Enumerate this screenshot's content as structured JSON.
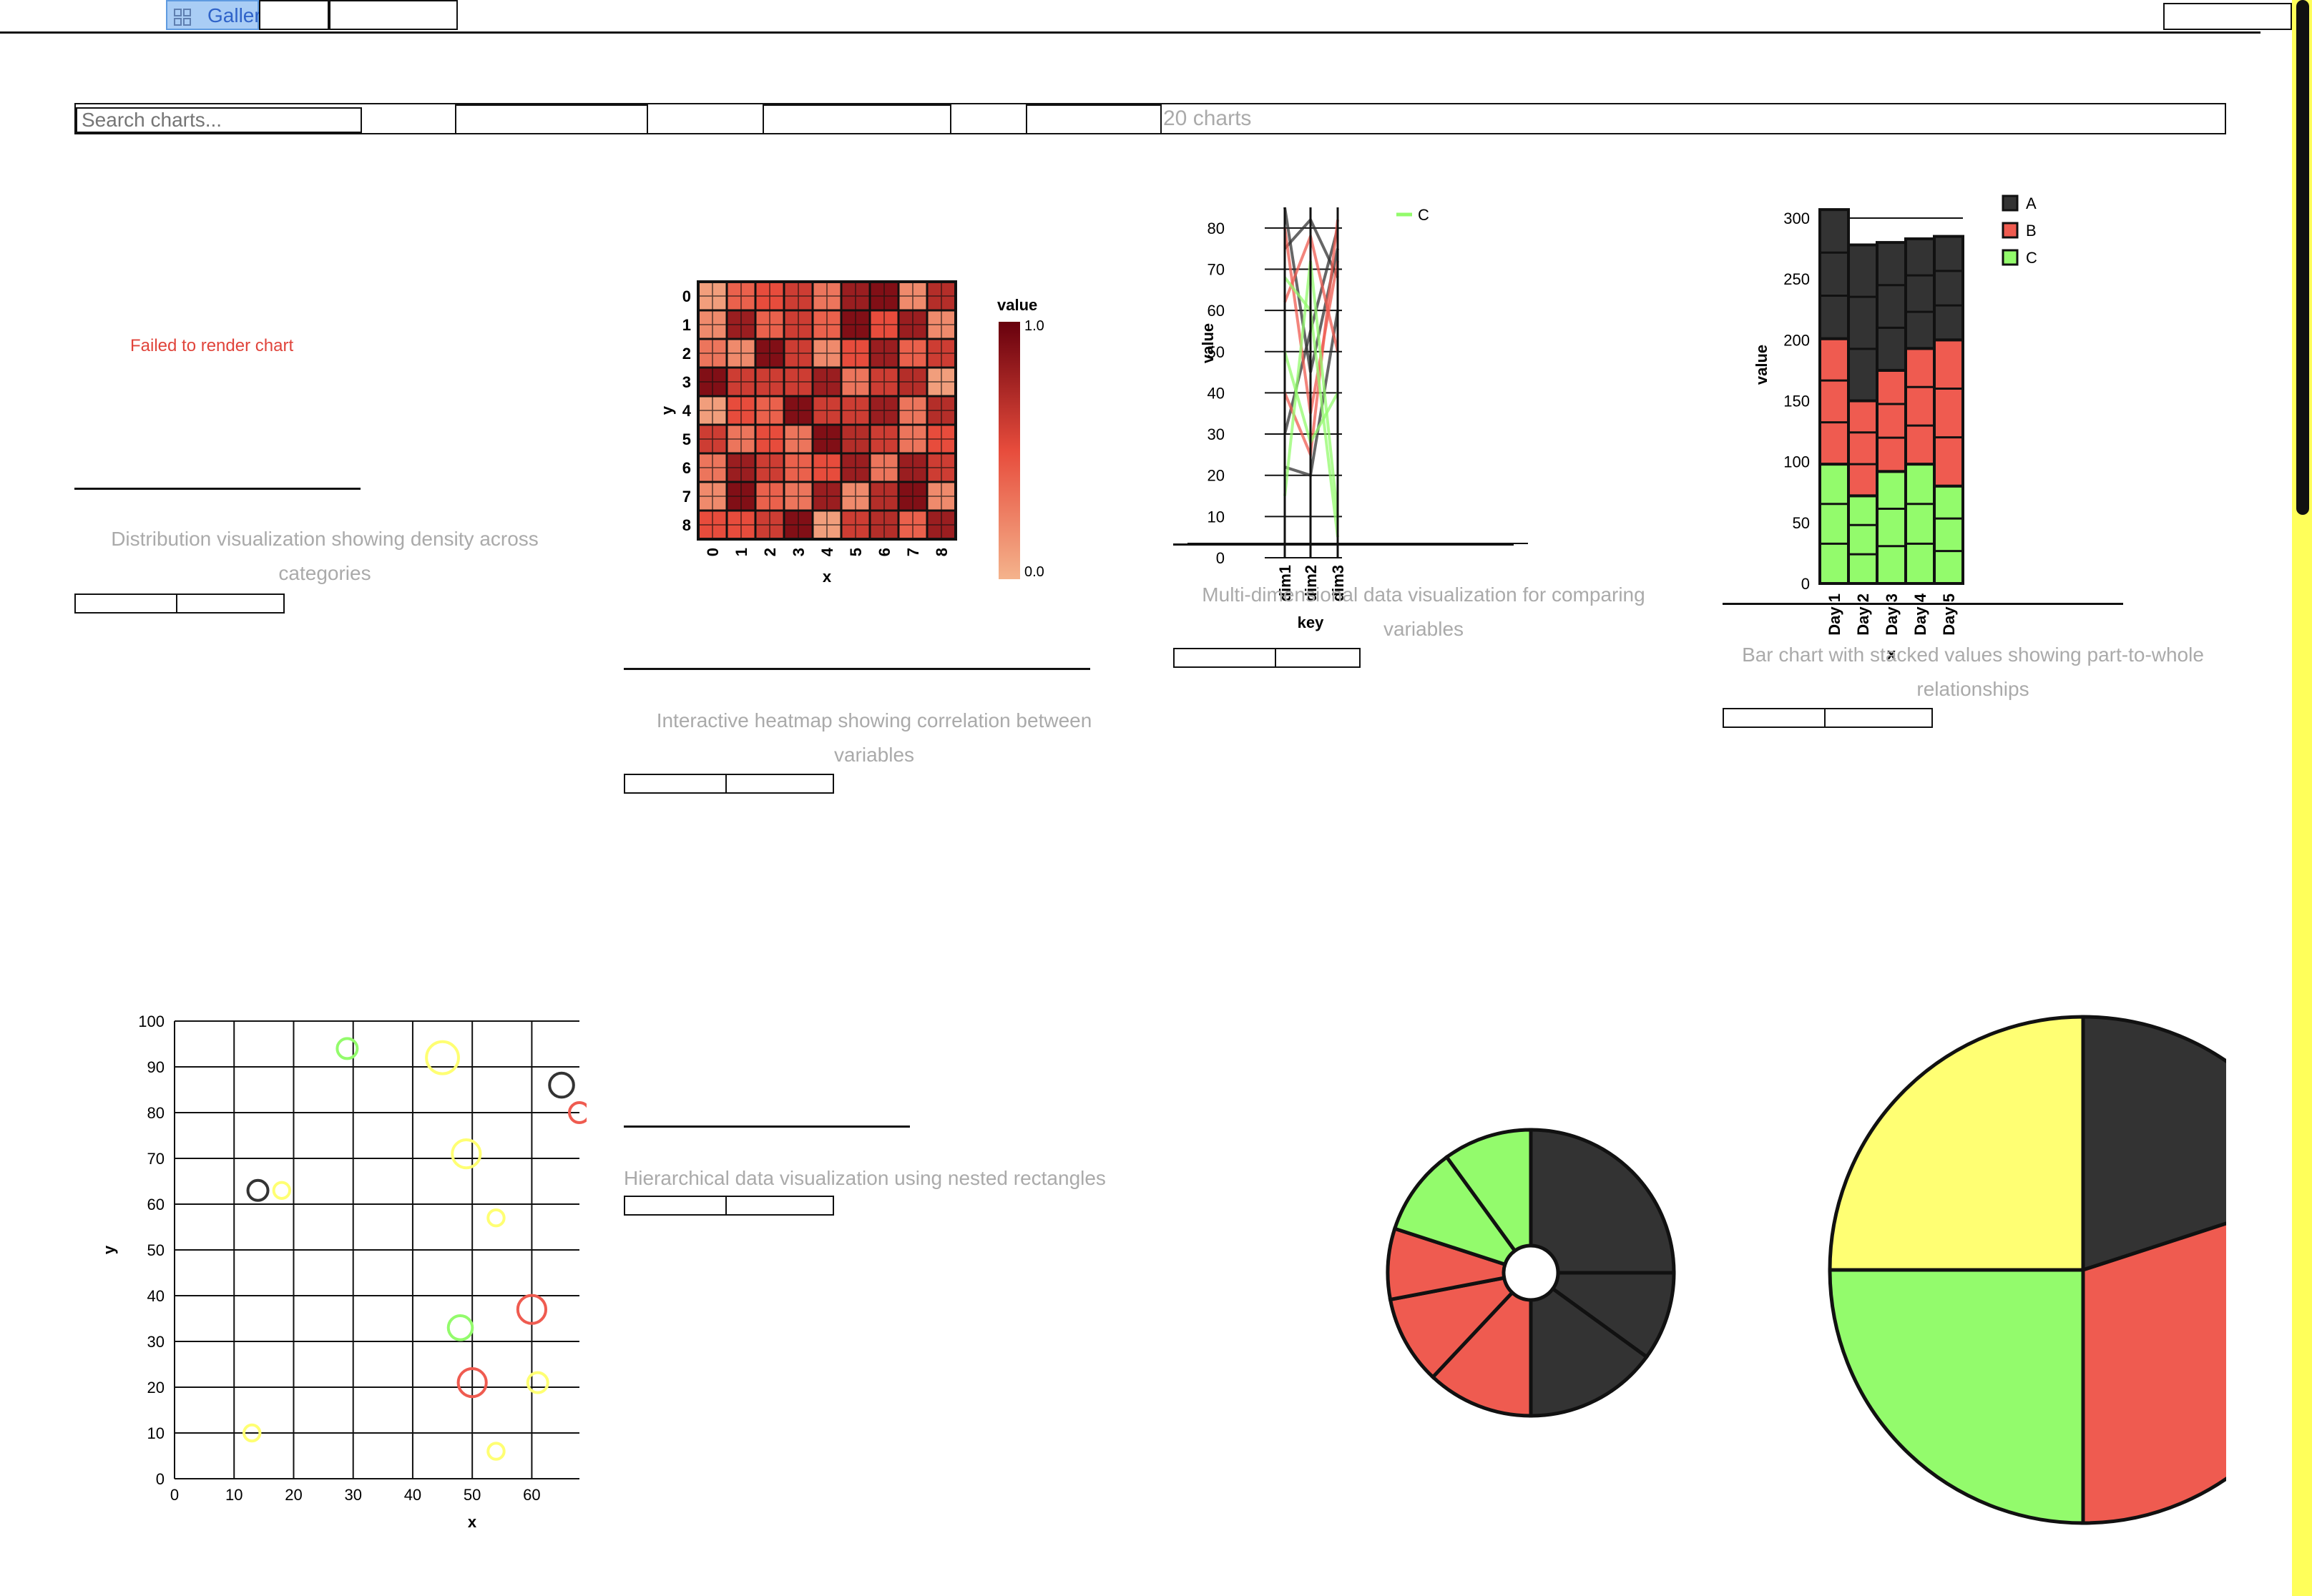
{
  "nav": {
    "tabs": [
      {
        "label": "Gallery",
        "active": true
      },
      {
        "label": ""
      },
      {
        "label": ""
      }
    ],
    "right_control": ""
  },
  "toolbar": {
    "search_placeholder": "Search charts...",
    "chart_count": "20 charts"
  },
  "cards": [
    {
      "status": "Failed to render chart",
      "description": "Distribution visualization showing density across categories"
    },
    {
      "description": "Interactive heatmap showing correlation between variables"
    },
    {
      "description": "Multi-dimensional data visualization for comparing variables"
    },
    {
      "description": "Bar chart with stacked values showing part-to-whole relationships"
    },
    {
      "description": ""
    },
    {
      "description": "Hierarchical data visualization using nested rectangles"
    }
  ],
  "colors": {
    "A": "#333333",
    "B": "#ef5b50",
    "C": "#93fb6c",
    "D": "#ffff73",
    "accent": "#5f9be0"
  },
  "chart_data": [
    {
      "type": "heatmap",
      "title": "",
      "xlabel": "x",
      "ylabel": "y",
      "x": [
        0,
        1,
        2,
        3,
        4,
        5,
        6,
        7,
        8
      ],
      "y": [
        0,
        1,
        2,
        3,
        4,
        5,
        6,
        7,
        8
      ],
      "colorbar_label": "value",
      "colorbar_ticks": [
        "1.0",
        "0.0"
      ],
      "range": [
        0,
        1
      ],
      "values": [
        [
          0.1,
          0.4,
          0.5,
          0.6,
          0.3,
          0.8,
          0.9,
          0.2,
          0.7
        ],
        [
          0.2,
          0.8,
          0.4,
          0.6,
          0.4,
          0.9,
          0.5,
          0.8,
          0.2
        ],
        [
          0.3,
          0.2,
          0.9,
          0.6,
          0.2,
          0.5,
          0.8,
          0.4,
          0.6
        ],
        [
          0.9,
          0.6,
          0.6,
          0.6,
          0.8,
          0.3,
          0.6,
          0.7,
          0.1
        ],
        [
          0.1,
          0.5,
          0.4,
          0.9,
          0.6,
          0.6,
          0.8,
          0.3,
          0.7
        ],
        [
          0.6,
          0.3,
          0.5,
          0.3,
          0.9,
          0.7,
          0.6,
          0.3,
          0.5
        ],
        [
          0.3,
          0.8,
          0.6,
          0.4,
          0.5,
          0.8,
          0.3,
          0.8,
          0.6
        ],
        [
          0.2,
          0.9,
          0.4,
          0.3,
          0.8,
          0.2,
          0.7,
          0.9,
          0.2
        ],
        [
          0.5,
          0.5,
          0.6,
          0.9,
          0.1,
          0.6,
          0.7,
          0.4,
          0.8
        ]
      ]
    },
    {
      "type": "line",
      "subtype": "parallel-coordinates",
      "xlabel": "key",
      "ylabel": "value",
      "categories": [
        "dim1",
        "dim2",
        "dim3"
      ],
      "ylim": [
        0,
        85
      ],
      "yticks": [
        0,
        10,
        20,
        30,
        40,
        50,
        60,
        70,
        80
      ],
      "legend": [
        "C"
      ],
      "series": [
        {
          "name": "A",
          "values": [
            30,
            55,
            80
          ]
        },
        {
          "name": "A",
          "values": [
            85,
            45,
            75
          ]
        },
        {
          "name": "A",
          "values": [
            22,
            20,
            60
          ]
        },
        {
          "name": "A",
          "values": [
            75,
            82,
            68
          ]
        },
        {
          "name": "B",
          "values": [
            62,
            78,
            50
          ]
        },
        {
          "name": "B",
          "values": [
            40,
            25,
            82
          ]
        },
        {
          "name": "B",
          "values": [
            80,
            35,
            72
          ]
        },
        {
          "name": "C",
          "values": [
            15,
            72,
            10
          ]
        },
        {
          "name": "C",
          "values": [
            50,
            28,
            40
          ]
        },
        {
          "name": "C",
          "values": [
            68,
            60,
            5
          ]
        }
      ]
    },
    {
      "type": "bar",
      "subtype": "stacked",
      "xlabel": "x",
      "ylabel": "value",
      "categories": [
        "Day 1",
        "Day 2",
        "Day 3",
        "Day 4",
        "Day 5"
      ],
      "ylim": [
        0,
        310
      ],
      "yticks": [
        0,
        50,
        100,
        150,
        200,
        250,
        300
      ],
      "legend": [
        "A",
        "B",
        "C"
      ],
      "series": [
        {
          "name": "C",
          "values": [
            98,
            72,
            92,
            98,
            80
          ]
        },
        {
          "name": "B",
          "values": [
            103,
            78,
            83,
            95,
            120
          ]
        },
        {
          "name": "A",
          "values": [
            106,
            128,
            105,
            90,
            85
          ]
        }
      ]
    },
    {
      "type": "scatter",
      "xlabel": "x",
      "ylabel": "y",
      "xlim": [
        0,
        68
      ],
      "ylim": [
        0,
        100
      ],
      "xticks": [
        0,
        10,
        20,
        30,
        40,
        50,
        60
      ],
      "yticks": [
        0,
        10,
        20,
        30,
        40,
        50,
        60,
        70,
        80,
        90,
        100
      ],
      "series": [
        {
          "name": "A",
          "points": [
            [
              14,
              63,
              5
            ],
            [
              65,
              86,
              6
            ]
          ]
        },
        {
          "name": "B",
          "points": [
            [
              60,
              37,
              7
            ],
            [
              50,
              21,
              7
            ],
            [
              68,
              80,
              5
            ]
          ]
        },
        {
          "name": "C",
          "points": [
            [
              29,
              94,
              5
            ],
            [
              48,
              33,
              6
            ]
          ]
        },
        {
          "name": "D",
          "points": [
            [
              45,
              92,
              8
            ],
            [
              49,
              71,
              7
            ],
            [
              18,
              63,
              4
            ],
            [
              54,
              57,
              4
            ],
            [
              61,
              21,
              5
            ],
            [
              13,
              10,
              4
            ],
            [
              54,
              6,
              4
            ]
          ]
        }
      ]
    },
    {
      "type": "pie",
      "subtype": "donut",
      "slices": [
        {
          "name": "A",
          "value": 25
        },
        {
          "name": "A",
          "value": 10
        },
        {
          "name": "A",
          "value": 15
        },
        {
          "name": "B",
          "value": 12
        },
        {
          "name": "B",
          "value": 10
        },
        {
          "name": "B",
          "value": 8
        },
        {
          "name": "C",
          "value": 10
        },
        {
          "name": "C",
          "value": 10
        }
      ]
    },
    {
      "type": "pie",
      "slices": [
        {
          "name": "A",
          "value": 20
        },
        {
          "name": "B",
          "value": 30
        },
        {
          "name": "C",
          "value": 25
        },
        {
          "name": "D",
          "value": 25
        }
      ]
    }
  ]
}
